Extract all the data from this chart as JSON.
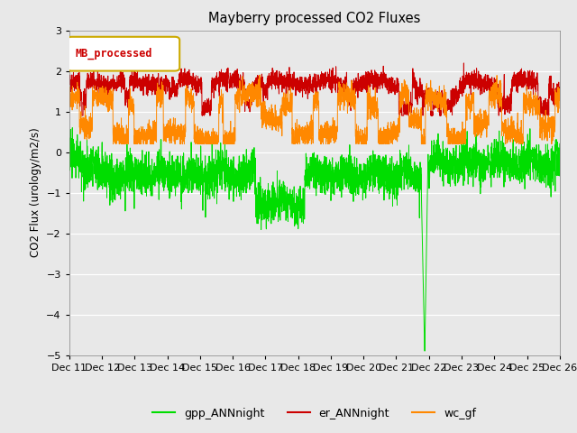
{
  "title": "Mayberry processed CO2 Fluxes",
  "ylabel": "CO2 Flux (urology/m2/s)",
  "xlabel": "",
  "ylim": [
    -5.0,
    3.0
  ],
  "yticks": [
    3.0,
    2.0,
    1.0,
    0.0,
    -1.0,
    -2.0,
    -3.0,
    -4.0,
    -5.0
  ],
  "background_color": "#e8e8e8",
  "legend_label": "MB_processed",
  "legend_text_color": "#cc0000",
  "legend_border_color": "#ccaa00",
  "series": {
    "gpp_ANNnight": {
      "color": "#00dd00",
      "label": "gpp_ANNnight"
    },
    "er_ANNnight": {
      "color": "#cc0000",
      "label": "er_ANNnight"
    },
    "wc_gf": {
      "color": "#ff8800",
      "label": "wc_gf"
    }
  },
  "xtick_labels": [
    "Dec 11",
    "Dec 12",
    "Dec 13",
    "Dec 14",
    "Dec 15",
    "Dec 16",
    "Dec 17",
    "Dec 18",
    "Dec 19",
    "Dec 20",
    "Dec 21",
    "Dec 22",
    "Dec 23",
    "Dec 24",
    "Dec 25",
    "Dec 26"
  ],
  "n_points": 3600,
  "seed": 42
}
